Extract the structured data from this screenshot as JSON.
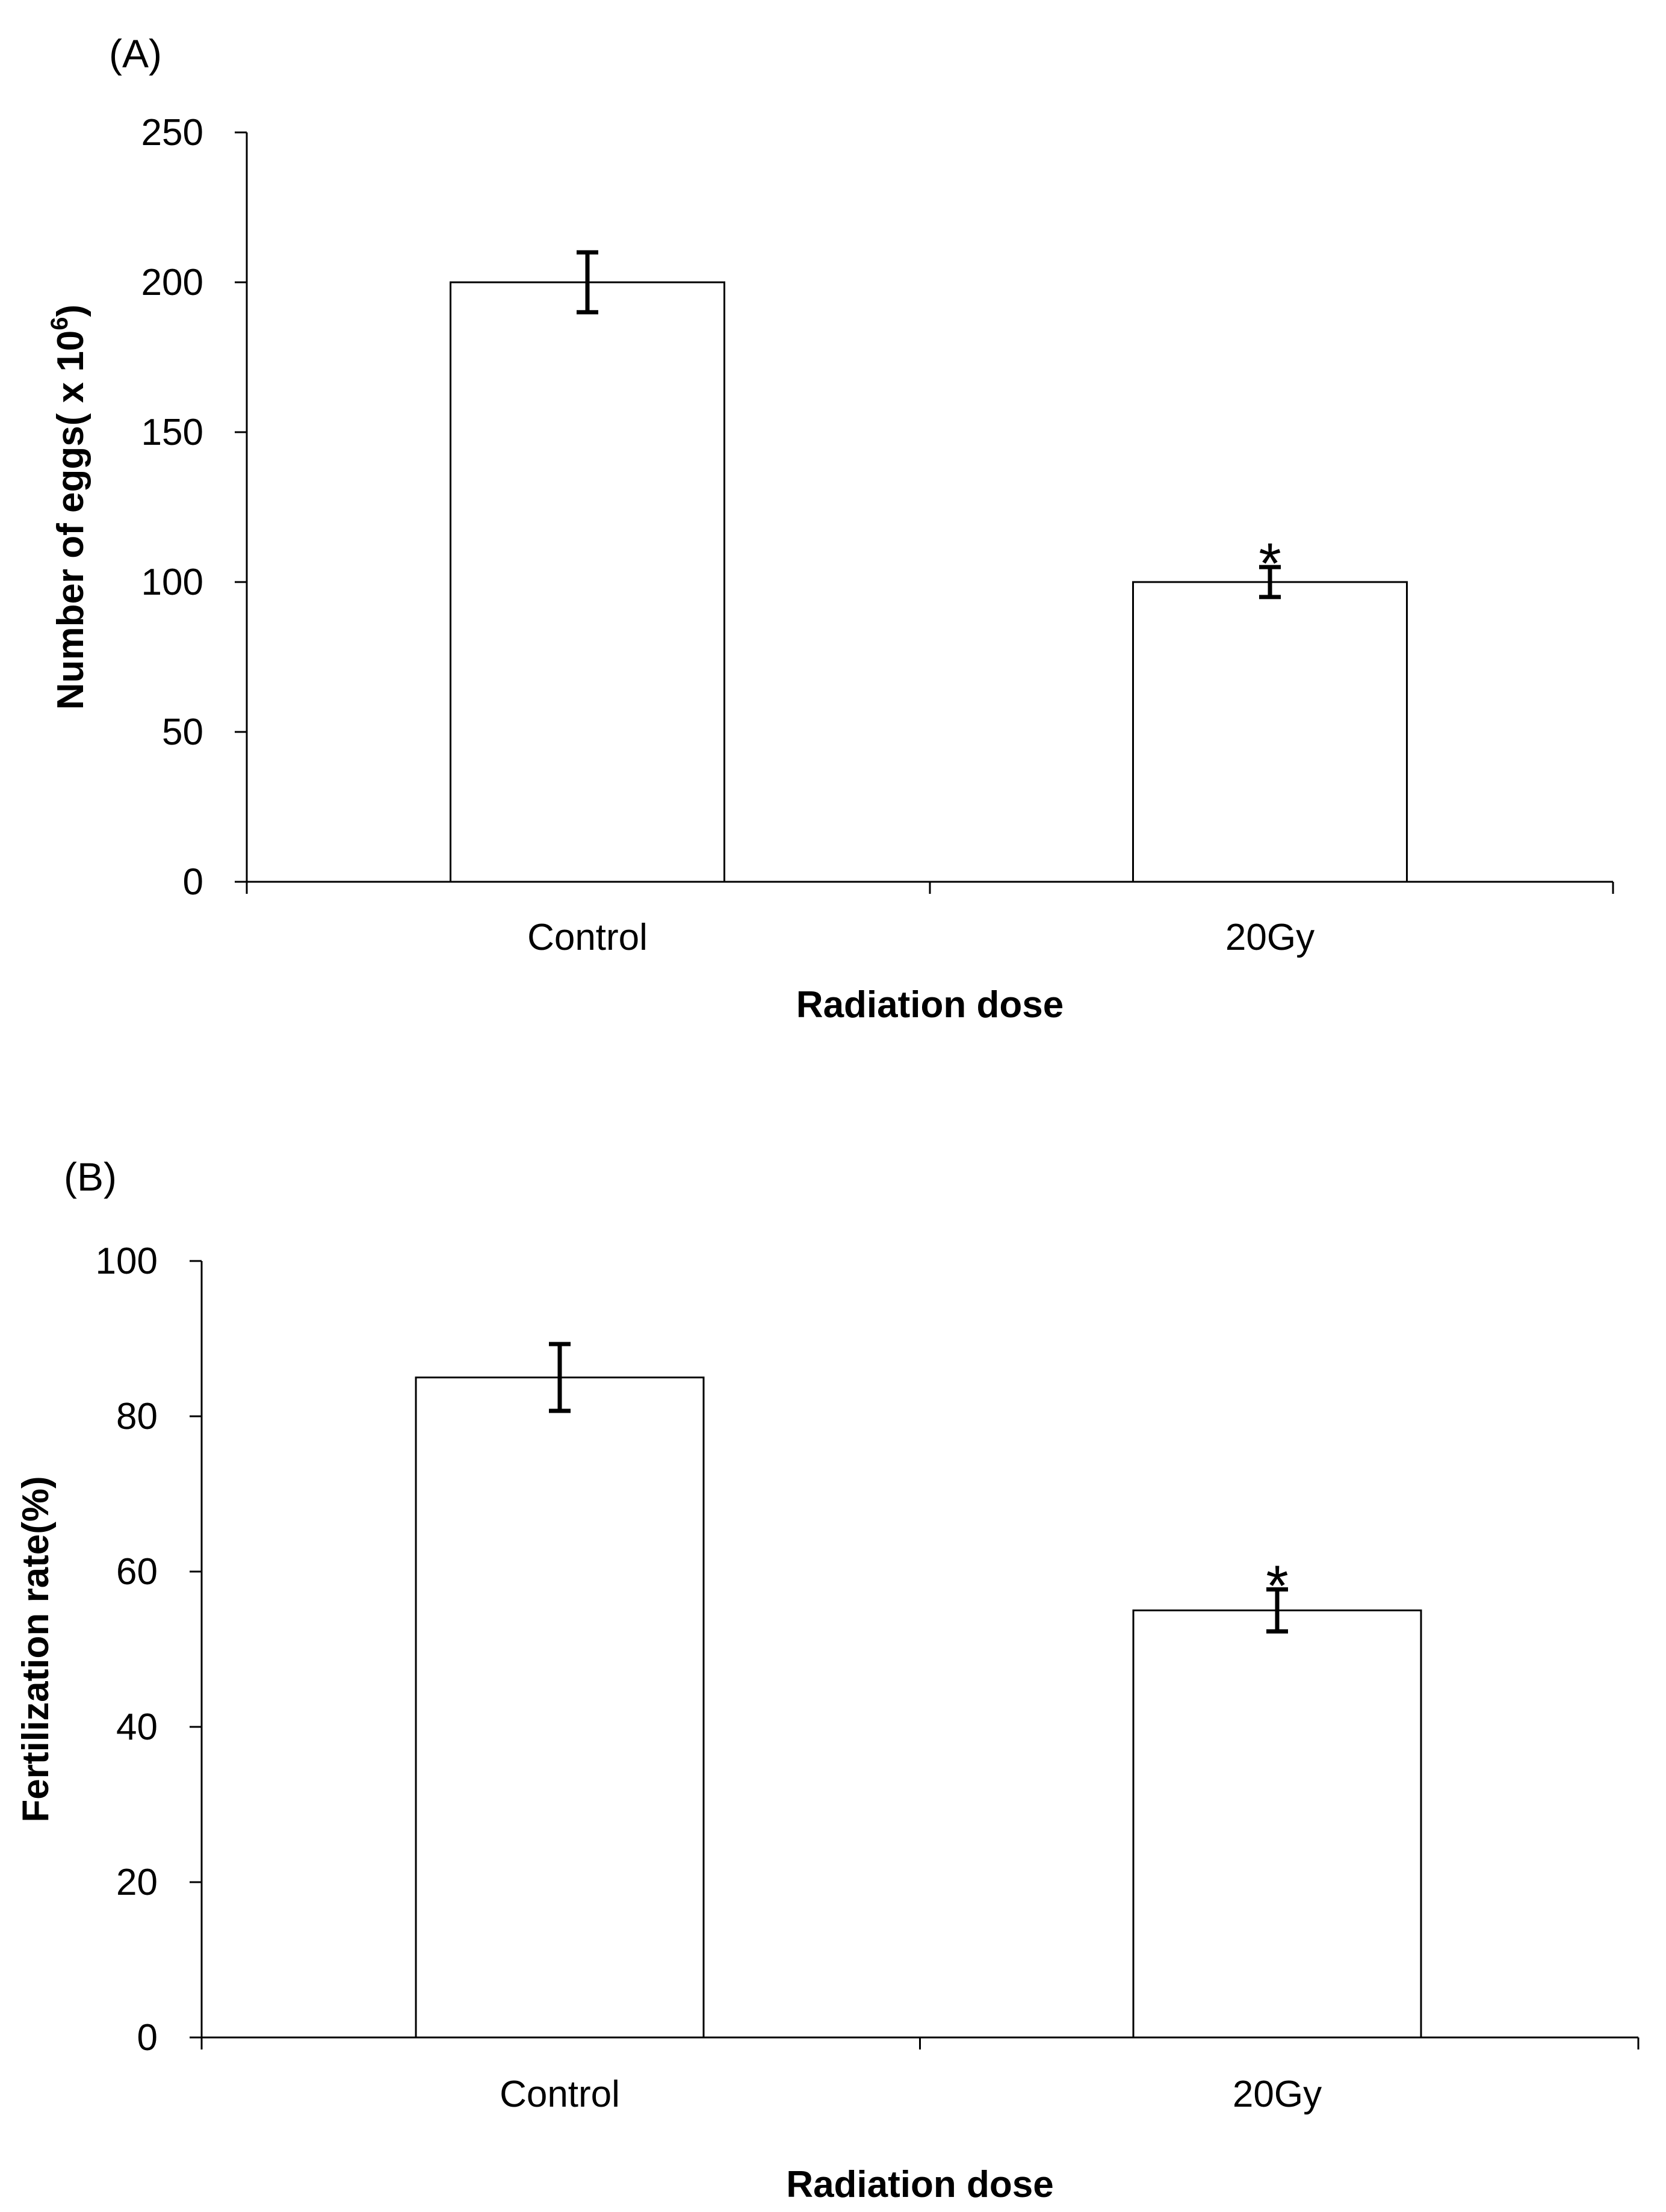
{
  "chart_data": [
    {
      "type": "bar",
      "panel": "(A)",
      "categories": [
        "Control",
        "20Gy"
      ],
      "values": [
        200,
        100
      ],
      "errors": [
        10,
        5
      ],
      "significance": [
        "",
        "*"
      ],
      "xlabel": "Radiation dose",
      "ylabel": "Number of eggs( x 10",
      "ylabel_sup": "6",
      "ylabel_end": ")",
      "ylim": [
        0,
        250
      ],
      "yticks": [
        0,
        50,
        100,
        150,
        200,
        250
      ],
      "bar_color": "#ffffff",
      "edge_color": "#000000",
      "grid": false
    },
    {
      "type": "bar",
      "panel": "(B)",
      "categories": [
        "Control",
        "20Gy"
      ],
      "values": [
        85,
        55
      ],
      "errors": [
        4.3,
        2.7
      ],
      "significance": [
        "",
        "*"
      ],
      "xlabel": "Radiation dose",
      "ylabel": "Fertilization rate(%)",
      "ylim": [
        0,
        100
      ],
      "yticks": [
        0,
        20,
        40,
        60,
        80,
        100
      ],
      "bar_color": "#ffffff",
      "edge_color": "#000000",
      "grid": false
    }
  ]
}
